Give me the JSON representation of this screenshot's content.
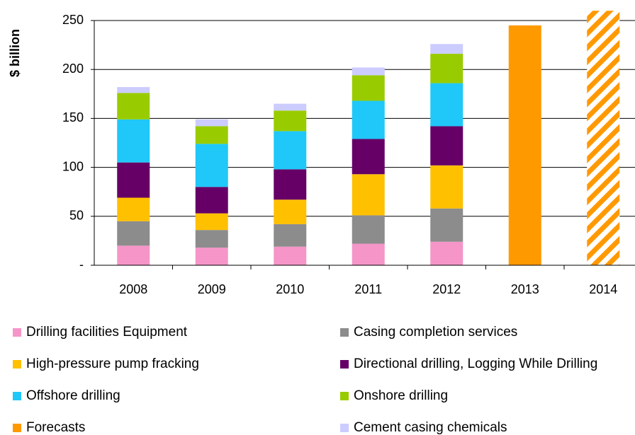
{
  "chart_data": {
    "type": "stacked_bar",
    "y_label": "$ billion",
    "categories": [
      "2008",
      "2009",
      "2010",
      "2011",
      "2012",
      "2013",
      "2014"
    ],
    "ylim": [
      0,
      250
    ],
    "yticks": [
      {
        "value": 0,
        "label": "-"
      },
      50,
      100,
      150,
      200,
      250
    ],
    "grid": true,
    "series": [
      {
        "name": "Drilling facilities Equipment",
        "color": "#f595c8",
        "values": [
          20,
          18,
          19,
          22,
          24,
          null,
          null
        ]
      },
      {
        "name": "Casing completion services",
        "color": "#8c8c8c",
        "values": [
          25,
          18,
          23,
          29,
          34,
          null,
          null
        ]
      },
      {
        "name": "High-pressure pump fracking",
        "color": "#ffc000",
        "values": [
          24,
          17,
          25,
          42,
          44,
          null,
          null
        ]
      },
      {
        "name": "Directional drilling, Logging While Drilling",
        "color": "#660066",
        "values": [
          36,
          27,
          31,
          36,
          40,
          null,
          null
        ]
      },
      {
        "name": "Offshore drilling",
        "color": "#1fc8f8",
        "values": [
          44,
          44,
          39,
          39,
          44,
          null,
          null
        ]
      },
      {
        "name": "Onshore drilling",
        "color": "#99cc00",
        "values": [
          27,
          18,
          21,
          26,
          30,
          null,
          null
        ]
      },
      {
        "name": "Cement casing chemicals",
        "color": "#ccccff",
        "values": [
          6,
          7,
          7,
          8,
          10,
          null,
          null
        ]
      },
      {
        "name": "Forecasts",
        "color": "#ff9900",
        "values": [
          null,
          null,
          null,
          null,
          null,
          245,
          260
        ],
        "hatch": [
          false,
          false,
          false,
          false,
          false,
          false,
          true
        ]
      }
    ]
  }
}
